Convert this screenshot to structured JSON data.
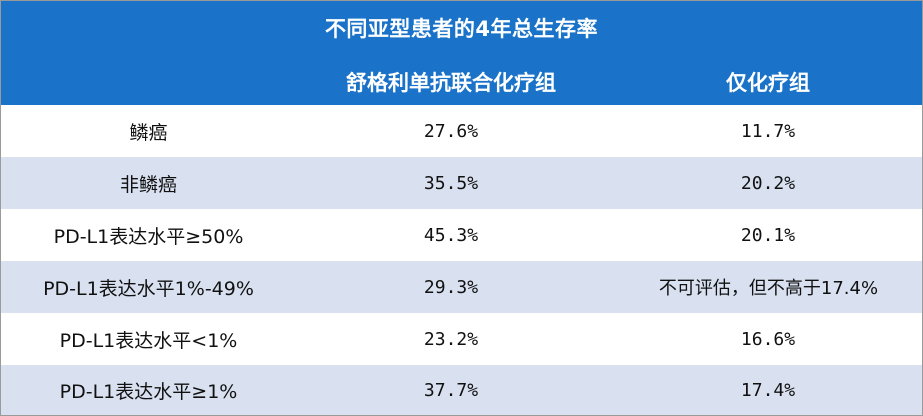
{
  "table": {
    "title": "不同亚型患者的4年总生存率",
    "columns": [
      "",
      "舒格利单抗联合化疗组",
      "仅化疗组"
    ],
    "rows": [
      {
        "subtype": "鳞癌",
        "combo": "27.6%",
        "chemo": "11.7%"
      },
      {
        "subtype": "非鳞癌",
        "combo": "35.5%",
        "chemo": "20.2%"
      },
      {
        "subtype": "PD-L1表达水平≥50%",
        "combo": "45.3%",
        "chemo": "20.1%"
      },
      {
        "subtype": "PD-L1表达水平1%-49%",
        "combo": "29.3%",
        "chemo": "不可评估，但不高于17.4%"
      },
      {
        "subtype": "PD-L1表达水平<1%",
        "combo": "23.2%",
        "chemo": "16.6%"
      },
      {
        "subtype": "PD-L1表达水平≥1%",
        "combo": "37.7%",
        "chemo": "17.4%"
      }
    ]
  },
  "colors": {
    "header_bg": "#1a73c8",
    "header_text": "#ffffff",
    "alt_row_bg": "#d9e1f1",
    "plain_row_bg": "#ffffff"
  }
}
